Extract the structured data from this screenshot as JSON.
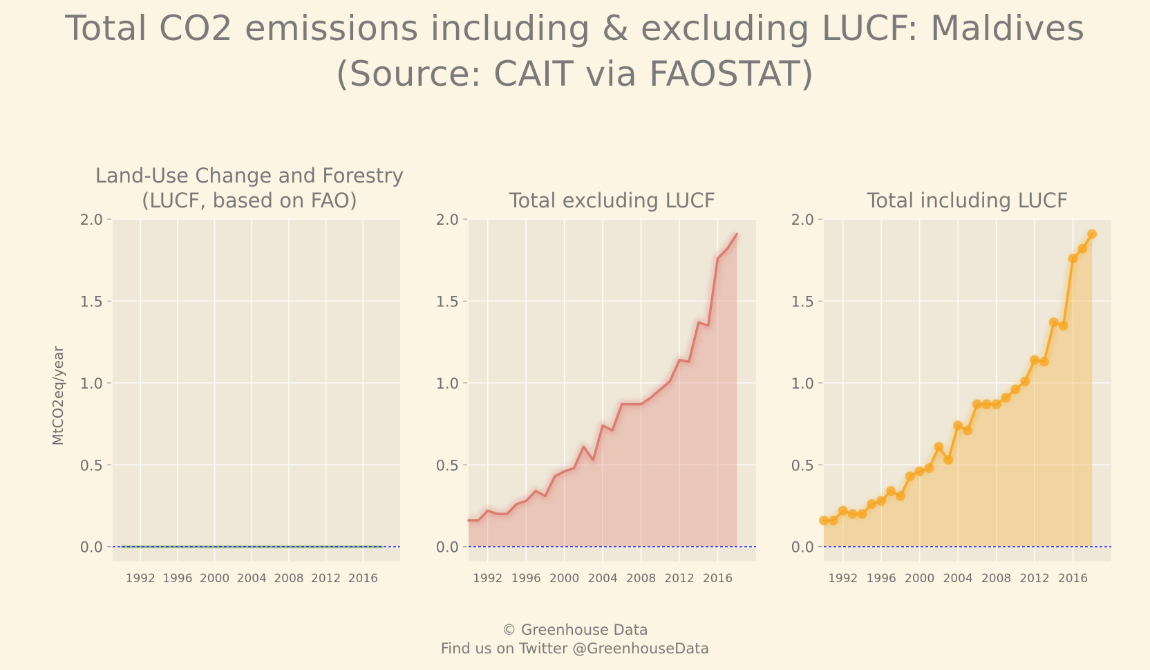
{
  "title_line1": "Total CO2 emissions including & excluding LUCF: Maldives",
  "title_line2": "(Source: CAIT via FAOSTAT)",
  "footer_line1": "© Greenhouse Data",
  "footer_line2": "Find us on Twitter @GreenhouseData",
  "colors": {
    "background": "#fdf5e3",
    "panel": "#efe8d8",
    "lucf": "#7fb55e",
    "excluding": "#d9766a",
    "including": "#f5a623",
    "zero_line": "#3333ff",
    "text": "#7a7a7a"
  },
  "chart_data": [
    {
      "type": "area",
      "title_line1": "Land-Use Change and Forestry",
      "title_line2": "(LUCF, based on FAO)",
      "ylabel": "MtCO2eq/year",
      "xlim": [
        1989,
        2020
      ],
      "ylim": [
        -0.09,
        2.0
      ],
      "yticks": [
        "0.0",
        "0.5",
        "1.0",
        "1.5",
        "2.0"
      ],
      "xticks": [
        "1992",
        "1996",
        "2000",
        "2004",
        "2008",
        "2012",
        "2016"
      ],
      "grid": true,
      "markers": false,
      "color": "#7fb55e",
      "series": [
        {
          "x": [
            1990,
            1991,
            1992,
            1993,
            1994,
            1995,
            1996,
            1997,
            1998,
            1999,
            2000,
            2001,
            2002,
            2003,
            2004,
            2005,
            2006,
            2007,
            2008,
            2009,
            2010,
            2011,
            2012,
            2013,
            2014,
            2015,
            2016,
            2017,
            2018
          ],
          "values": [
            0,
            0,
            0,
            0,
            0,
            0,
            0,
            0,
            0,
            0,
            0,
            0,
            0,
            0,
            0,
            0,
            0,
            0,
            0,
            0,
            0,
            0,
            0,
            0,
            0,
            0,
            0,
            0,
            0
          ]
        }
      ]
    },
    {
      "type": "area",
      "title_line1": "",
      "title_line2": "Total excluding LUCF",
      "ylabel": "",
      "xlim": [
        1990,
        2020
      ],
      "ylim": [
        -0.09,
        2.0
      ],
      "yticks": [
        "0.0",
        "0.5",
        "1.0",
        "1.5",
        "2.0"
      ],
      "xticks": [
        "1992",
        "1996",
        "2000",
        "2004",
        "2008",
        "2012",
        "2016"
      ],
      "grid": true,
      "markers": false,
      "color": "#d9766a",
      "series": [
        {
          "x": [
            1990,
            1991,
            1992,
            1993,
            1994,
            1995,
            1996,
            1997,
            1998,
            1999,
            2000,
            2001,
            2002,
            2003,
            2004,
            2005,
            2006,
            2007,
            2008,
            2009,
            2010,
            2011,
            2012,
            2013,
            2014,
            2015,
            2016,
            2017,
            2018
          ],
          "values": [
            0.16,
            0.16,
            0.22,
            0.2,
            0.2,
            0.26,
            0.28,
            0.34,
            0.31,
            0.43,
            0.46,
            0.48,
            0.61,
            0.53,
            0.74,
            0.71,
            0.87,
            0.87,
            0.87,
            0.91,
            0.96,
            1.01,
            1.14,
            1.13,
            1.37,
            1.35,
            1.76,
            1.82,
            1.91
          ]
        }
      ]
    },
    {
      "type": "area",
      "title_line1": "",
      "title_line2": "Total including LUCF",
      "ylabel": "",
      "xlim": [
        1990,
        2020
      ],
      "ylim": [
        -0.09,
        2.0
      ],
      "yticks": [
        "0.0",
        "0.5",
        "1.0",
        "1.5",
        "2.0"
      ],
      "xticks": [
        "1992",
        "1996",
        "2000",
        "2004",
        "2008",
        "2012",
        "2016"
      ],
      "grid": true,
      "markers": true,
      "color": "#f5a623",
      "series": [
        {
          "x": [
            1990,
            1991,
            1992,
            1993,
            1994,
            1995,
            1996,
            1997,
            1998,
            1999,
            2000,
            2001,
            2002,
            2003,
            2004,
            2005,
            2006,
            2007,
            2008,
            2009,
            2010,
            2011,
            2012,
            2013,
            2014,
            2015,
            2016,
            2017,
            2018
          ],
          "values": [
            0.16,
            0.16,
            0.22,
            0.2,
            0.2,
            0.26,
            0.28,
            0.34,
            0.31,
            0.43,
            0.46,
            0.48,
            0.61,
            0.53,
            0.74,
            0.71,
            0.87,
            0.87,
            0.87,
            0.91,
            0.96,
            1.01,
            1.14,
            1.13,
            1.37,
            1.35,
            1.76,
            1.82,
            1.91
          ]
        }
      ]
    }
  ]
}
